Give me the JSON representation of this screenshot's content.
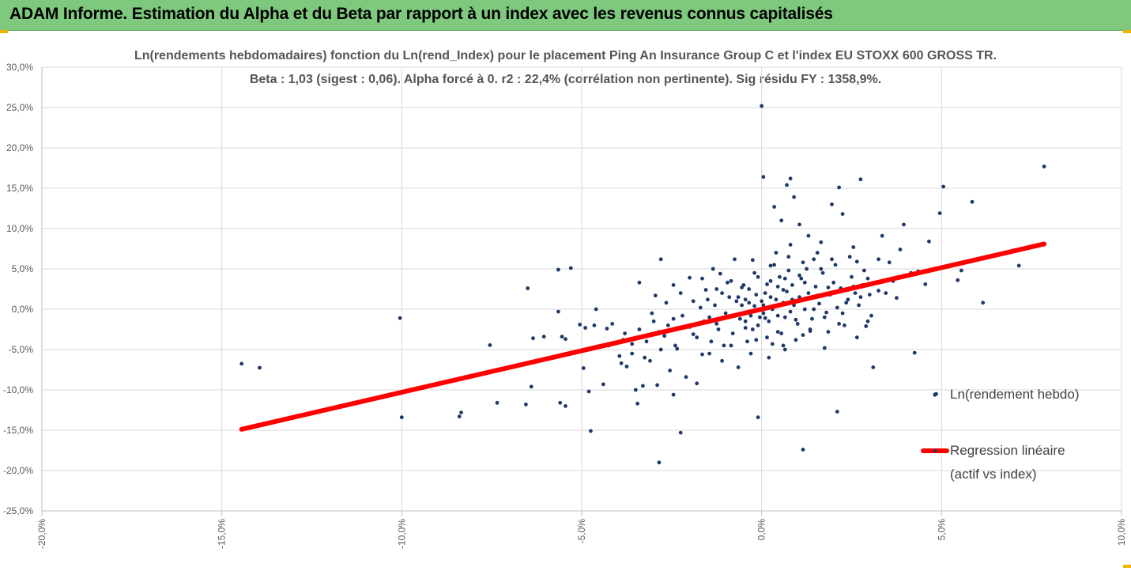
{
  "banner": {
    "title": "ADAM Informe. Estimation du Alpha et du Beta par rapport à un index avec les revenus connus capitalisés"
  },
  "chart_data": {
    "type": "scatter",
    "title": "Ln(rendements hebdomadaires) fonction du Ln(rend_Index) pour le placement Ping An Insurance Group C et l'index EU STOXX 600 GROSS TR.",
    "subtitle": "Beta : 1,03 (sigest : 0,06). Alpha forcé à 0. r2 : 22,4% (corrélation non pertinente). Sig résidu FY : 1358,9%.",
    "xlim": [
      -0.2,
      0.1
    ],
    "ylim": [
      -0.25,
      0.3
    ],
    "x_ticks": [
      "-20,0%",
      "-15,0%",
      "-10,0%",
      "-5,0%",
      "0,0%",
      "5,0%",
      "10,0%"
    ],
    "x_tick_values": [
      -0.2,
      -0.15,
      -0.1,
      -0.05,
      0.0,
      0.05,
      0.1
    ],
    "y_ticks": [
      "30,0%",
      "25,0%",
      "20,0%",
      "15,0%",
      "10,0%",
      "5,0%",
      "0,0%",
      "-5,0%",
      "-10,0%",
      "-15,0%",
      "-20,0%",
      "-25,0%"
    ],
    "y_tick_values": [
      0.3,
      0.25,
      0.2,
      0.15,
      0.1,
      0.05,
      0.0,
      -0.05,
      -0.1,
      -0.15,
      -0.2,
      -0.25
    ],
    "grid": "vertical",
    "legend_position": "right",
    "series": [
      {
        "name": "Ln(rendement hebdo)",
        "color": "#1f3a68",
        "kind": "scatter",
        "points": [
          [
            -0.1445,
            -0.0675
          ],
          [
            -0.1395,
            -0.0725
          ],
          [
            -0.1005,
            -0.011
          ],
          [
            -0.1,
            -0.134
          ],
          [
            -0.084,
            -0.133
          ],
          [
            -0.0835,
            -0.128
          ],
          [
            -0.0755,
            -0.0445
          ],
          [
            -0.0735,
            -0.116
          ],
          [
            -0.0655,
            -0.118
          ],
          [
            -0.065,
            0.026
          ],
          [
            -0.064,
            -0.096
          ],
          [
            -0.0635,
            -0.036
          ],
          [
            -0.0605,
            -0.034
          ],
          [
            -0.0565,
            0.049
          ],
          [
            -0.0565,
            -0.003
          ],
          [
            -0.056,
            -0.116
          ],
          [
            -0.0555,
            -0.034
          ],
          [
            -0.0545,
            -0.037
          ],
          [
            -0.0545,
            -0.12
          ],
          [
            -0.053,
            0.051
          ],
          [
            -0.0505,
            -0.019
          ],
          [
            -0.0495,
            -0.073
          ],
          [
            -0.049,
            -0.023
          ],
          [
            -0.048,
            -0.102
          ],
          [
            -0.0475,
            -0.151
          ],
          [
            -0.0465,
            -0.02
          ],
          [
            -0.046,
            0.0
          ],
          [
            -0.044,
            -0.093
          ],
          [
            -0.043,
            -0.024
          ],
          [
            -0.0425,
            -0.045
          ],
          [
            -0.0415,
            -0.018
          ],
          [
            -0.0395,
            -0.058
          ],
          [
            -0.039,
            -0.067
          ],
          [
            -0.0385,
            -0.038
          ],
          [
            -0.0375,
            -0.071
          ],
          [
            -0.036,
            -0.043
          ],
          [
            -0.035,
            -0.1
          ],
          [
            -0.0345,
            -0.117
          ],
          [
            -0.034,
            0.033
          ],
          [
            -0.033,
            -0.095
          ],
          [
            -0.031,
            -0.064
          ],
          [
            -0.0295,
            0.017
          ],
          [
            -0.029,
            -0.03
          ],
          [
            -0.029,
            -0.094
          ],
          [
            -0.0285,
            -0.19
          ],
          [
            -0.028,
            0.062
          ],
          [
            -0.027,
            -0.033
          ],
          [
            -0.0255,
            -0.076
          ],
          [
            -0.0245,
            0.03
          ],
          [
            -0.0245,
            -0.106
          ],
          [
            -0.0235,
            -0.049
          ],
          [
            -0.0225,
            -0.153
          ],
          [
            -0.021,
            -0.084
          ],
          [
            -0.02,
            0.039
          ],
          [
            -0.019,
            -0.031
          ],
          [
            -0.018,
            -0.092
          ],
          [
            -0.0165,
            -0.056
          ],
          [
            -0.0155,
            0.024
          ],
          [
            -0.0145,
            -0.01
          ],
          [
            -0.0135,
            0.05
          ],
          [
            -0.0125,
            -0.018
          ],
          [
            -0.0115,
            0.044
          ],
          [
            -0.011,
            -0.064
          ],
          [
            -0.0095,
            0.033
          ],
          [
            -0.0085,
            -0.045
          ],
          [
            -0.0075,
            0.062
          ],
          [
            -0.0065,
            -0.072
          ],
          [
            -0.0055,
            0.027
          ],
          [
            -0.0045,
            -0.023
          ],
          [
            -0.0035,
            0.008
          ],
          [
            -0.0025,
            0.061
          ],
          [
            -0.0015,
            -0.038
          ],
          [
            -0.001,
            -0.134
          ],
          [
            0.0,
            0.252
          ],
          [
            0.0005,
            0.164
          ],
          [
            0.001,
            -0.011
          ],
          [
            0.0015,
            0.031
          ],
          [
            0.0025,
            0.054
          ],
          [
            0.003,
            -0.043
          ],
          [
            0.0035,
            0.127
          ],
          [
            0.0045,
            -0.008
          ],
          [
            0.0055,
            0.11
          ],
          [
            0.006,
            0.024
          ],
          [
            0.0065,
            -0.05
          ],
          [
            0.007,
            0.154
          ],
          [
            0.0075,
            0.048
          ],
          [
            0.008,
            0.162
          ],
          [
            0.009,
            0.139
          ],
          [
            0.0095,
            -0.013
          ],
          [
            0.0105,
            0.105
          ],
          [
            0.0115,
            -0.174
          ],
          [
            0.012,
            0.033
          ],
          [
            0.013,
            0.091
          ],
          [
            0.0135,
            -0.027
          ],
          [
            0.0145,
            0.062
          ],
          [
            0.0155,
            0.017
          ],
          [
            0.0165,
            0.083
          ],
          [
            0.0175,
            -0.048
          ],
          [
            0.0185,
            0.027
          ],
          [
            0.0195,
            0.13
          ],
          [
            0.021,
            -0.127
          ],
          [
            0.0215,
            0.151
          ],
          [
            0.0225,
            0.118
          ],
          [
            0.024,
            0.024
          ],
          [
            0.0255,
            0.077
          ],
          [
            0.0265,
            0.059
          ],
          [
            0.0275,
            0.161
          ],
          [
            0.029,
            -0.021
          ],
          [
            0.0295,
            0.038
          ],
          [
            0.031,
            -0.072
          ],
          [
            0.0325,
            0.023
          ],
          [
            0.0335,
            0.091
          ],
          [
            0.0355,
            0.058
          ],
          [
            0.0375,
            0.014
          ],
          [
            0.0385,
            0.074
          ],
          [
            0.0395,
            0.105
          ],
          [
            0.0415,
            0.045
          ],
          [
            0.0425,
            -0.054
          ],
          [
            0.0435,
            0.047
          ],
          [
            0.0455,
            0.031
          ],
          [
            0.0465,
            0.084
          ],
          [
            0.0485,
            -0.105
          ],
          [
            0.0495,
            0.119
          ],
          [
            0.0505,
            0.152
          ],
          [
            0.0545,
            0.036
          ],
          [
            0.0555,
            0.048
          ],
          [
            0.0585,
            0.133
          ],
          [
            0.0615,
            0.008
          ],
          [
            0.0715,
            0.054
          ],
          [
            0.0785,
            0.177
          ],
          [
            -0.0045,
            0.012
          ],
          [
            -0.0035,
            0.025
          ],
          [
            -0.003,
            -0.008
          ],
          [
            -0.002,
            0.004
          ],
          [
            -0.0015,
            0.018
          ],
          [
            -0.001,
            -0.02
          ],
          [
            0.0,
            0.01
          ],
          [
            0.0005,
            -0.005
          ],
          [
            0.001,
            0.02
          ],
          [
            0.002,
            -0.015
          ],
          [
            0.0025,
            0.035
          ],
          [
            0.003,
            0.0
          ],
          [
            0.004,
            0.012
          ],
          [
            0.0045,
            -0.028
          ],
          [
            0.005,
            0.04
          ],
          [
            0.006,
            0.008
          ],
          [
            0.0065,
            -0.01
          ],
          [
            0.007,
            0.022
          ],
          [
            0.008,
            -0.003
          ],
          [
            0.0085,
            0.03
          ],
          [
            0.009,
            0.005
          ],
          [
            0.01,
            -0.018
          ],
          [
            0.0105,
            0.015
          ],
          [
            0.011,
            0.038
          ],
          [
            0.012,
            0.0
          ],
          [
            0.013,
            0.02
          ],
          [
            0.014,
            -0.012
          ],
          [
            0.015,
            0.028
          ],
          [
            0.016,
            0.007
          ],
          [
            0.017,
            0.045
          ],
          [
            0.018,
            -0.004
          ],
          [
            0.019,
            0.018
          ],
          [
            0.02,
            0.033
          ],
          [
            0.021,
            0.002
          ],
          [
            0.022,
            0.026
          ],
          [
            0.023,
            -0.02
          ],
          [
            0.024,
            0.012
          ],
          [
            0.025,
            0.04
          ],
          [
            0.026,
            0.02
          ],
          [
            0.027,
            0.005
          ],
          [
            0.028,
            0.03
          ],
          [
            0.03,
            0.018
          ],
          [
            -0.006,
            -0.012
          ],
          [
            -0.007,
            0.01
          ],
          [
            -0.008,
            -0.03
          ],
          [
            -0.009,
            0.015
          ],
          [
            -0.01,
            -0.005
          ],
          [
            -0.011,
            0.02
          ],
          [
            -0.012,
            -0.025
          ],
          [
            -0.013,
            0.005
          ],
          [
            -0.014,
            -0.04
          ],
          [
            -0.015,
            0.012
          ],
          [
            -0.016,
            -0.015
          ],
          [
            -0.017,
            0.002
          ],
          [
            -0.018,
            -0.035
          ],
          [
            -0.019,
            0.01
          ],
          [
            -0.02,
            -0.022
          ],
          [
            -0.022,
            -0.008
          ],
          [
            -0.024,
            -0.045
          ],
          [
            -0.026,
            -0.02
          ],
          [
            -0.028,
            -0.05
          ],
          [
            -0.03,
            -0.015
          ],
          [
            -0.032,
            -0.04
          ],
          [
            -0.034,
            -0.025
          ],
          [
            -0.036,
            -0.055
          ],
          [
            -0.038,
            -0.03
          ],
          [
            -0.005,
            0.03
          ],
          [
            -0.004,
            -0.04
          ],
          [
            -0.002,
            0.045
          ],
          [
            0.0015,
            -0.035
          ],
          [
            0.0035,
            0.055
          ],
          [
            0.0055,
            -0.03
          ],
          [
            0.0075,
            0.065
          ],
          [
            0.0095,
            -0.038
          ],
          [
            0.0115,
            0.058
          ],
          [
            0.0135,
            -0.025
          ],
          [
            0.0155,
            0.07
          ],
          [
            0.0175,
            -0.01
          ],
          [
            -0.003,
            -0.055
          ],
          [
            -0.001,
            0.04
          ],
          [
            0.002,
            -0.06
          ],
          [
            0.004,
            0.07
          ],
          [
            0.006,
            -0.045
          ],
          [
            0.008,
            0.08
          ],
          [
            -0.0065,
            0.015
          ],
          [
            -0.0085,
            0.035
          ],
          [
            -0.0105,
            -0.045
          ],
          [
            -0.0125,
            0.025
          ],
          [
            -0.0145,
            -0.055
          ],
          [
            -0.0165,
            0.038
          ],
          [
            0.0145,
            0.0
          ],
          [
            0.0165,
            0.05
          ],
          [
            0.0185,
            -0.028
          ],
          [
            0.0205,
            0.055
          ],
          [
            0.0225,
            -0.005
          ],
          [
            0.0245,
            0.065
          ],
          [
            0.0265,
            -0.035
          ],
          [
            0.0285,
            0.048
          ],
          [
            0.0305,
            -0.008
          ],
          [
            0.0325,
            0.062
          ],
          [
            0.0345,
            0.02
          ],
          [
            0.0365,
            0.035
          ],
          [
            -0.0225,
            0.02
          ],
          [
            -0.0245,
            -0.012
          ],
          [
            -0.0265,
            0.008
          ],
          [
            -0.0285,
            -0.028
          ],
          [
            -0.0305,
            -0.005
          ],
          [
            -0.0325,
            -0.06
          ],
          [
            0.0005,
            0.005
          ],
          [
            -0.0005,
            -0.01
          ],
          [
            0.0025,
            0.015
          ],
          [
            0.0045,
            0.028
          ],
          [
            0.0065,
            0.038
          ],
          [
            0.0085,
            0.012
          ],
          [
            -0.0025,
            -0.025
          ],
          [
            -0.0045,
            -0.015
          ],
          [
            -0.0055,
            0.005
          ],
          [
            0.0105,
            0.042
          ],
          [
            0.0125,
            0.05
          ],
          [
            0.0115,
            -0.032
          ],
          [
            0.0195,
            0.062
          ],
          [
            0.0215,
            -0.018
          ],
          [
            0.0235,
            0.008
          ],
          [
            0.0255,
            0.028
          ],
          [
            0.0275,
            0.015
          ],
          [
            0.0295,
            -0.015
          ]
        ]
      },
      {
        "name": "Regression linéaire (actif vs index)",
        "legend_lines": [
          "Regression linéaire",
          "(actif vs index)"
        ],
        "color": "#ff0000",
        "kind": "line",
        "points": [
          [
            -0.1445,
            -0.1488
          ],
          [
            0.0785,
            0.0809
          ]
        ]
      }
    ]
  }
}
